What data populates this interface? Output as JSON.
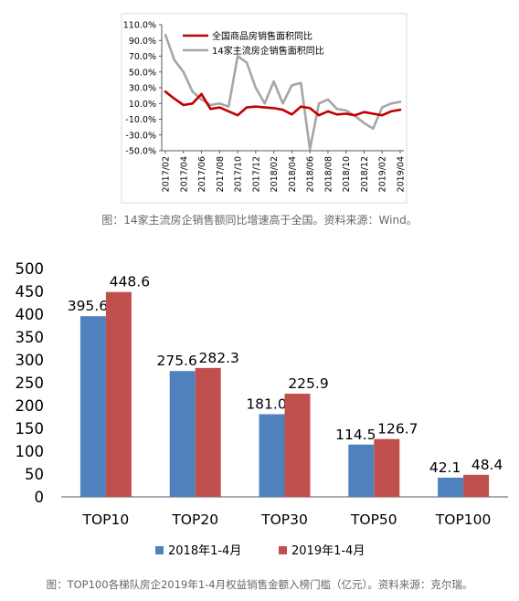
{
  "chart_data": [
    {
      "type": "line",
      "title": "",
      "xlabel": "",
      "ylabel": "",
      "ylim": [
        -50,
        110
      ],
      "yticks": [
        "110.0%",
        "90.0%",
        "70.0%",
        "50.0%",
        "30.0%",
        "10.0%",
        "-10.0%",
        "-30.0%",
        "-50.0%"
      ],
      "ytick_values": [
        110,
        90,
        70,
        50,
        30,
        10,
        -10,
        -30,
        -50
      ],
      "x_labels": [
        "2017/02",
        "2017/04",
        "2017/06",
        "2017/08",
        "2017/10",
        "2017/12",
        "2018/02",
        "2018/04",
        "2018/06",
        "2018/08",
        "2018/10",
        "2018/12",
        "2019/02",
        "2019/04"
      ],
      "grid": false,
      "legend_position": "top",
      "series": [
        {
          "name": "全国商品房销售面积同比",
          "color": "#c00000",
          "values": [
            25,
            16,
            8,
            10,
            22,
            3,
            5,
            0,
            -5,
            5,
            6,
            5,
            4,
            2,
            -4,
            6,
            4,
            -5,
            0,
            -4,
            -3,
            -5,
            -1,
            -3,
            -5,
            0,
            2
          ]
        },
        {
          "name": "14家主流房企销售面积同比",
          "color": "#a6a6a6",
          "values": [
            97,
            65,
            50,
            25,
            15,
            8,
            10,
            6,
            70,
            62,
            30,
            10,
            38,
            10,
            33,
            36,
            -48,
            10,
            15,
            3,
            1,
            -6,
            -15,
            -22,
            5,
            10,
            12
          ]
        }
      ]
    },
    {
      "type": "bar",
      "title": "",
      "xlabel": "",
      "ylabel": "",
      "ylim": [
        0,
        500
      ],
      "yticks": [
        "500",
        "450",
        "400",
        "350",
        "300",
        "250",
        "200",
        "150",
        "100",
        "50",
        "0"
      ],
      "ytick_values": [
        500,
        450,
        400,
        350,
        300,
        250,
        200,
        150,
        100,
        50,
        0
      ],
      "categories": [
        "TOP10",
        "TOP20",
        "TOP30",
        "TOP50",
        "TOP100"
      ],
      "legend_position": "bottom",
      "series": [
        {
          "name": "2018年1-4月",
          "color": "#4f81bd",
          "values": [
            395.6,
            275.6,
            181.0,
            114.5,
            42.1
          ],
          "labels": [
            "395.6",
            "275.6",
            "181.0",
            "114.5",
            "42.1"
          ]
        },
        {
          "name": "2019年1-4月",
          "color": "#c0504d",
          "values": [
            448.6,
            282.3,
            225.9,
            126.7,
            48.4
          ],
          "labels": [
            "448.6",
            "282.3",
            "225.9",
            "126.7",
            "48.4"
          ]
        }
      ]
    }
  ],
  "captions": {
    "top": "图：14家主流房企销售额同比增速高于全国。资料来源：Wind。",
    "bottom": "图：TOP100各梯队房企2019年1-4月权益销售金额入榜门槛（亿元）。资料来源：克尔瑞。"
  }
}
